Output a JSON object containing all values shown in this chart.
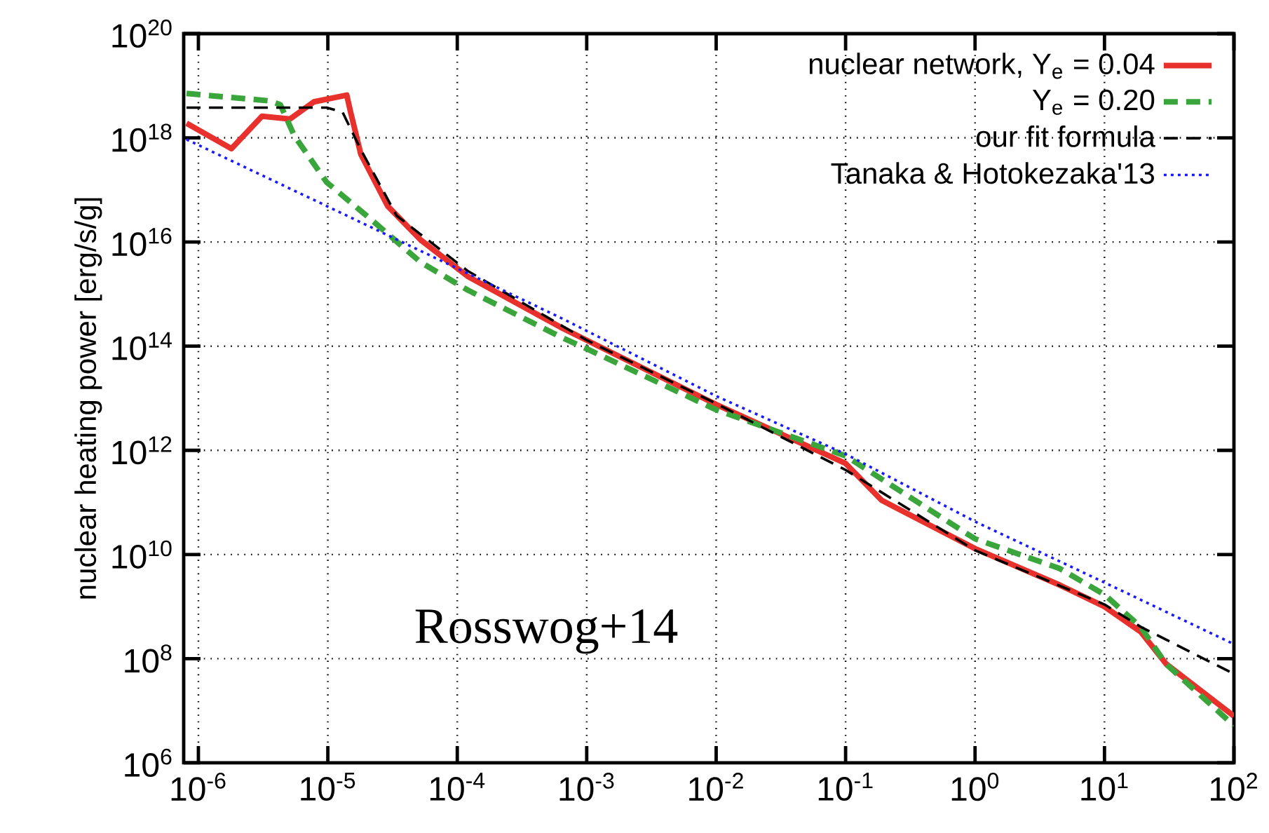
{
  "chart_data": {
    "type": "line",
    "ylabel": "nuclear heating power [erg/s/g]",
    "log": "xy",
    "grid": true,
    "legend": "top right",
    "marker": "none",
    "xlim": [
      7.7e-07,
      100
    ],
    "ylim": [
      1000000.0,
      1e+20
    ],
    "xticks": [
      {
        "value": 1e-06,
        "label": "10$^{-6}$"
      },
      {
        "value": 1e-05,
        "label": "10$^{-5}$"
      },
      {
        "value": 0.0001,
        "label": "10$^{-4}$"
      },
      {
        "value": 0.001,
        "label": "10$^{-3}$"
      },
      {
        "value": 0.01,
        "label": "10$^{-2}$"
      },
      {
        "value": 0.1,
        "label": "10$^{-1}$"
      },
      {
        "value": 1,
        "label": "10$^{0}$"
      },
      {
        "value": 10,
        "label": "10$^{1}$"
      },
      {
        "value": 100,
        "label": "10$^{2}$"
      }
    ],
    "yticks": [
      {
        "value": 1000000.0,
        "label": "10$^{6}$"
      },
      {
        "value": 100000000.0,
        "label": "10$^{8}$"
      },
      {
        "value": 10000000000.0,
        "label": "10$^{10}$"
      },
      {
        "value": 1000000000000.0,
        "label": "10$^{12}$"
      },
      {
        "value": 100000000000000.0,
        "label": "10$^{14}$"
      },
      {
        "value": 1e+16,
        "label": "10$^{16}$"
      },
      {
        "value": 1e+18,
        "label": "10$^{18}$"
      },
      {
        "value": 1e+20,
        "label": "10$^{20}$"
      }
    ],
    "annotations": [
      "Rosswog+14"
    ],
    "series": [
      {
        "name": "nuclear network, Y$_{e}$ = 0.04",
        "color": "#e8302c",
        "line_style": "solid",
        "x": [
          8.1e-07,
          1.8e-06,
          3.1e-06,
          5.1e-06,
          7.8e-06,
          1.4e-05,
          1.5e-05,
          1.8e-05,
          2.9e-05,
          5.2e-05,
          0.00012,
          0.00063,
          0.001,
          0.01,
          0.1,
          0.19,
          1,
          4.5,
          10,
          19,
          30,
          100
        ],
        "values": [
          1.9e+18,
          6.2e+17,
          2.6e+18,
          2.3e+18,
          4.9e+18,
          6.6e+18,
          3.1e+18,
          4.8e+17,
          4.9e+16,
          1.1e+16,
          2200000000000000.0,
          230000000000000.0,
          130000000000000.0,
          7600000000000.0,
          560000000000.0,
          110000000000.0,
          13000000000.0,
          2600000000.0,
          1000000000.0,
          330000000.0,
          79000000.0,
          7900000.0
        ]
      },
      {
        "name": "Y$_{e}$ = 0.20",
        "color": "#3aa53a",
        "line_style": "dashed",
        "x": [
          8.1e-07,
          3.6e-06,
          4.3e-06,
          5.5e-06,
          9.8e-06,
          2.2e-05,
          5.2e-05,
          0.00012,
          0.00063,
          0.001,
          0.01,
          0.1,
          1,
          4.5,
          10,
          19,
          30,
          100
        ],
        "values": [
          7.1e+18,
          5.1e+18,
          4.3e+18,
          1.1e+18,
          1.4e+17,
          2.6e+16,
          4100000000000000.0,
          1200000000000000.0,
          150000000000000.0,
          89000000000000.0,
          6000000000000.0,
          780000000000.0,
          20000000000.0,
          5400000000.0,
          1700000000.0,
          410000000.0,
          78000000.0,
          5200000.0
        ]
      },
      {
        "name": "our fit formula",
        "color": "#000000",
        "line_style": "dashed",
        "x": [
          8.1e-07,
          9.8e-06,
          1.3e-05,
          1.8e-05,
          3.4e-05,
          0.00012,
          0.001,
          0.01,
          0.1,
          1,
          10,
          19,
          100
        ],
        "values": [
          3.8e+18,
          3.8e+18,
          3.1e+18,
          5.9e+17,
          3.2e+16,
          2800000000000000.0,
          130000000000000.0,
          7900000000000.0,
          420000000000.0,
          12000000000.0,
          1100000000.0,
          410000000.0,
          51000000.0
        ]
      },
      {
        "name": "Tanaka & Hotokezaka'13",
        "color": "#1a1aff",
        "line_style": "dotted",
        "x": [
          8.1e-07,
          9.8e-06,
          0.00063,
          0.01,
          0.1,
          1,
          10,
          100
        ],
        "values": [
          9.3e+17,
          4.9e+16,
          350000000000000.0,
          11000000000000.0,
          850000000000.0,
          43000000000.0,
          2900000000.0,
          190000000.0
        ]
      }
    ]
  }
}
